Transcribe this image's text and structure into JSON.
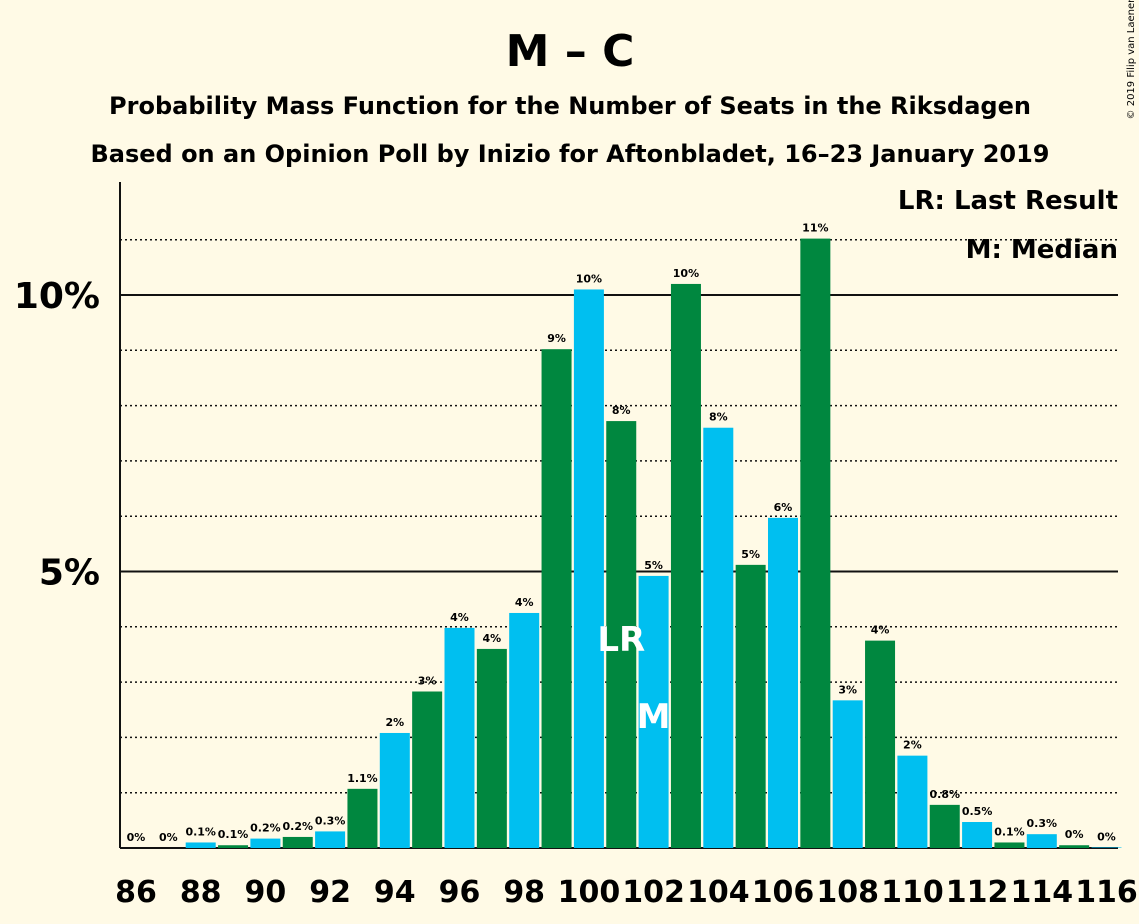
{
  "chart_data": {
    "type": "bar",
    "title": "M – C",
    "subtitle_1": "Probability Mass Function for the Number of Seats in the Riksdagen",
    "subtitle_2": "Based on an Opinion Poll by Inizio for Aftonbladet, 16–23 January 2019",
    "copyright": "© 2019 Filip van Laenen",
    "legend": {
      "position": "top-right",
      "lr": "LR: Last Result",
      "median": "M: Median"
    },
    "colors": {
      "background": "#fffae6",
      "bar_a": "#00bff0",
      "bar_b": "#00873f",
      "axis": "#111111"
    },
    "xlabel": "",
    "ylabel": "",
    "ylim": [
      0,
      12
    ],
    "y_major_ticks": [
      {
        "value": 5,
        "label": "5%"
      },
      {
        "value": 10,
        "label": "10%"
      }
    ],
    "y_minor_gridlines": [
      1,
      2,
      3,
      4,
      6,
      7,
      8,
      9,
      11
    ],
    "x_tick_labels": [
      "86",
      "88",
      "90",
      "92",
      "94",
      "96",
      "98",
      "100",
      "102",
      "104",
      "106",
      "108",
      "110",
      "112",
      "114",
      "116"
    ],
    "x": [
      86,
      87,
      88,
      89,
      90,
      91,
      92,
      93,
      94,
      95,
      96,
      97,
      98,
      99,
      100,
      101,
      102,
      103,
      104,
      105,
      106,
      107,
      108,
      109,
      110,
      111,
      112,
      113,
      114,
      115,
      116
    ],
    "values": [
      0,
      0,
      0.1,
      0.05,
      0.17,
      0.2,
      0.3,
      1.07,
      2.08,
      2.83,
      3.98,
      3.6,
      4.25,
      9.02,
      10.1,
      7.72,
      4.92,
      10.2,
      7.6,
      5.12,
      5.97,
      11.02,
      2.67,
      3.75,
      1.67,
      0.78,
      0.47,
      0.1,
      0.25,
      0.05,
      0.01
    ],
    "labels": [
      "0%",
      "0%",
      "0.1%",
      "0.1%",
      "0.2%",
      "0.2%",
      "0.3%",
      "1.1%",
      "2%",
      "3%",
      "4%",
      "4%",
      "4%",
      "9%",
      "10%",
      "8%",
      "5%",
      "10%",
      "8%",
      "5%",
      "6%",
      "11%",
      "3%",
      "4%",
      "2%",
      "0.8%",
      "0.5%",
      "0.1%",
      "0.3%",
      "0%",
      "0%"
    ],
    "last_result": {
      "x": 101,
      "label": "LR"
    },
    "median": {
      "x": 102,
      "label": "M"
    }
  }
}
